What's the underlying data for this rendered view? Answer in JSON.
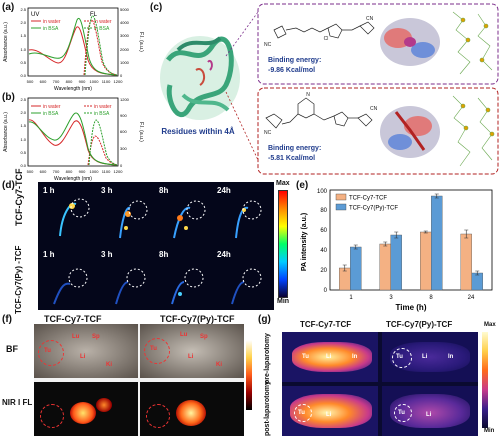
{
  "panels": {
    "a": "(a)",
    "b": "(b)",
    "c": "(c)",
    "d": "(d)",
    "e": "(e)",
    "f": "(f)",
    "g": "(g)"
  },
  "spectra": {
    "uv_tag": "UV",
    "fl_tag": "FL",
    "in_water": "in water",
    "in_bsa": "in BSA",
    "xlabel": "Wavelength (nm)",
    "ylabel_left": "Absorbance (a.u.)",
    "ylabel_right": "F.I. (a.u.)",
    "x_ticks": [
      "500",
      "600",
      "700",
      "800",
      "900",
      "1000",
      "1100",
      "1200"
    ],
    "a_y_left_ticks": [
      "0.0",
      "0.5",
      "1.0",
      "1.5",
      "2.0",
      "2.5"
    ],
    "a_y_right_ticks": [
      "0",
      "1000",
      "2000",
      "3000",
      "4000",
      "5000"
    ],
    "b_y_left_ticks": [
      "0.0",
      "0.5",
      "1.0",
      "1.5",
      "2.0",
      "2.5"
    ],
    "b_y_right_ticks": [
      "0",
      "300",
      "600",
      "900",
      "1200"
    ]
  },
  "docking": {
    "residues_label": "Residues within 4Å",
    "binding1": "Binding energy:",
    "energy1": "-9.86 Kcal/mol",
    "binding2": "Binding energy:",
    "energy2": "-5.81 Kcal/mol"
  },
  "imaging_d": {
    "row1_label": "TCF-Cy7-TCF",
    "row2_label": "TCF-Cy7(Py) -TCF",
    "times": [
      "1 h",
      "3 h",
      "8h",
      "24h"
    ],
    "times2": [
      "1 h",
      "3 h",
      "8h",
      "24h"
    ],
    "scale_max": "Max",
    "scale_min": "Min"
  },
  "chart_data": {
    "type": "bar",
    "categories": [
      "1",
      "3",
      "8",
      "24"
    ],
    "series": [
      {
        "name": "TCF-Cy7-TCF",
        "values": [
          22,
          46,
          58,
          56
        ],
        "errors": [
          3,
          2,
          1,
          4
        ],
        "color": "#f4b183"
      },
      {
        "name": "TCF-Cy7(Py)-TCF",
        "values": [
          43,
          55,
          94,
          17
        ],
        "errors": [
          2,
          3,
          2,
          2
        ],
        "color": "#5b9bd5"
      }
    ],
    "xlabel": "Time (h)",
    "ylabel": "PA intensity (a.u.)",
    "ylim": [
      0,
      100
    ],
    "y_ticks": [
      "0",
      "20",
      "40",
      "60",
      "80",
      "100"
    ],
    "legend_position": "top-left"
  },
  "imaging_f": {
    "col1": "TCF-Cy7-TCF",
    "col2": "TCF-Cy7(Py)-TCF",
    "row_bf": "BF",
    "row_fl": "NIR I FL",
    "organs": [
      "Tu",
      "Lu",
      "Sp",
      "Li",
      "Ki",
      "Tu",
      "Lu",
      "Sp",
      "Li",
      "Ki"
    ]
  },
  "imaging_g": {
    "col1": "TCF-Cy7-TCF",
    "col2": "TCF-Cy7(Py)-TCF",
    "row1": "pre-laparotomy",
    "row2": "post-laparotomy",
    "labels": [
      "Tu",
      "Li",
      "In",
      "Tu",
      "Li",
      "In",
      "Tu",
      "Li",
      "Tu",
      "Li"
    ],
    "scale_max": "Max",
    "scale_min": "Min"
  }
}
